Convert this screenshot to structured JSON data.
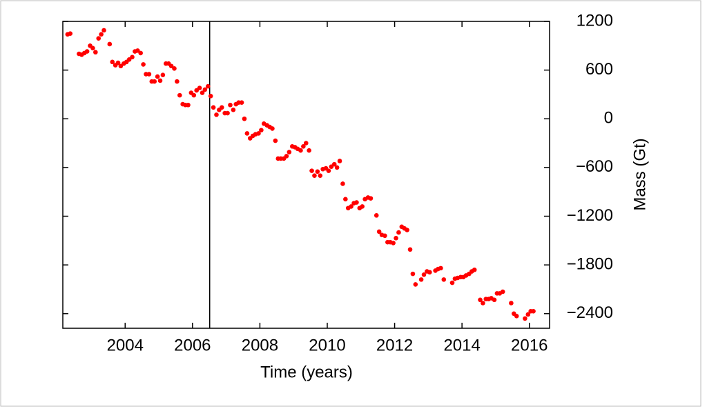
{
  "chart_data": {
    "type": "scatter",
    "xlabel": "Time (years)",
    "ylabel": "Mass (Gt)",
    "color": "#ff0000",
    "vline": 2006.51,
    "xlim": [
      2002.15,
      2016.6
    ],
    "ylim": [
      -2580,
      1200
    ],
    "xticks": [
      2004,
      2006,
      2008,
      2010,
      2012,
      2014,
      2016
    ],
    "yticks": [
      {
        "value": -2400,
        "label": "−2400"
      },
      {
        "value": -1800,
        "label": "−1800"
      },
      {
        "value": -1200,
        "label": "−1200"
      },
      {
        "value": -600,
        "label": "−600"
      },
      0,
      600,
      1200
    ],
    "x": [
      2002.29,
      2002.37,
      2002.63,
      2002.71,
      2002.79,
      2002.87,
      2002.96,
      2003.04,
      2003.12,
      2003.21,
      2003.29,
      2003.37,
      2003.54,
      2003.62,
      2003.71,
      2003.79,
      2003.87,
      2003.96,
      2004.04,
      2004.12,
      2004.21,
      2004.29,
      2004.37,
      2004.46,
      2004.54,
      2004.62,
      2004.71,
      2004.79,
      2004.87,
      2004.96,
      2005.04,
      2005.12,
      2005.21,
      2005.29,
      2005.37,
      2005.46,
      2005.54,
      2005.62,
      2005.71,
      2005.79,
      2005.87,
      2005.96,
      2006.04,
      2006.12,
      2006.21,
      2006.29,
      2006.37,
      2006.46,
      2006.54,
      2006.62,
      2006.71,
      2006.79,
      2006.87,
      2006.96,
      2007.04,
      2007.12,
      2007.21,
      2007.29,
      2007.37,
      2007.46,
      2007.54,
      2007.62,
      2007.71,
      2007.79,
      2007.87,
      2007.96,
      2008.04,
      2008.12,
      2008.21,
      2008.29,
      2008.37,
      2008.46,
      2008.54,
      2008.62,
      2008.71,
      2008.79,
      2008.87,
      2008.96,
      2009.04,
      2009.12,
      2009.21,
      2009.29,
      2009.37,
      2009.46,
      2009.54,
      2009.62,
      2009.71,
      2009.79,
      2009.87,
      2009.96,
      2010.04,
      2010.12,
      2010.21,
      2010.29,
      2010.37,
      2010.46,
      2010.54,
      2010.62,
      2010.71,
      2010.79,
      2010.87,
      2010.96,
      2011.04,
      2011.12,
      2011.21,
      2011.29,
      2011.46,
      2011.54,
      2011.62,
      2011.71,
      2011.79,
      2011.87,
      2011.96,
      2012.04,
      2012.12,
      2012.21,
      2012.29,
      2012.37,
      2012.46,
      2012.54,
      2012.62,
      2012.79,
      2012.87,
      2012.96,
      2013.04,
      2013.21,
      2013.29,
      2013.37,
      2013.46,
      2013.71,
      2013.79,
      2013.87,
      2013.96,
      2014.04,
      2014.12,
      2014.21,
      2014.29,
      2014.37,
      2014.54,
      2014.62,
      2014.71,
      2014.79,
      2014.87,
      2014.96,
      2015.04,
      2015.12,
      2015.21,
      2015.46,
      2015.54,
      2015.62,
      2015.87,
      2015.96,
      2016.04,
      2016.12
    ],
    "values": [
      1040,
      1050,
      800,
      790,
      810,
      830,
      900,
      870,
      820,
      990,
      1040,
      1090,
      920,
      700,
      660,
      690,
      650,
      680,
      700,
      730,
      760,
      830,
      840,
      810,
      670,
      550,
      550,
      460,
      460,
      520,
      470,
      540,
      680,
      680,
      650,
      620,
      460,
      290,
      180,
      170,
      170,
      320,
      290,
      350,
      380,
      320,
      360,
      400,
      280,
      140,
      50,
      110,
      140,
      70,
      70,
      170,
      110,
      180,
      200,
      200,
      0,
      -180,
      -240,
      -210,
      -190,
      -180,
      -140,
      -60,
      -80,
      -100,
      -120,
      -270,
      -490,
      -490,
      -490,
      -460,
      -410,
      -340,
      -350,
      -370,
      -390,
      -340,
      -300,
      -390,
      -640,
      -700,
      -650,
      -700,
      -620,
      -610,
      -640,
      -590,
      -560,
      -600,
      -520,
      -800,
      -990,
      -1100,
      -1080,
      -1040,
      -1030,
      -1100,
      -1080,
      -990,
      -970,
      -980,
      -1190,
      -1390,
      -1430,
      -1440,
      -1520,
      -1520,
      -1530,
      -1470,
      -1400,
      -1330,
      -1350,
      -1370,
      -1610,
      -1910,
      -2040,
      -1980,
      -1920,
      -1880,
      -1890,
      -1870,
      -1850,
      -1840,
      -1980,
      -2020,
      -1970,
      -1960,
      -1950,
      -1950,
      -1930,
      -1910,
      -1880,
      -1860,
      -2230,
      -2270,
      -2220,
      -2220,
      -2210,
      -2230,
      -2150,
      -2150,
      -2130,
      -2270,
      -2400,
      -2430,
      -2460,
      -2410,
      -2370,
      -2370
    ]
  }
}
